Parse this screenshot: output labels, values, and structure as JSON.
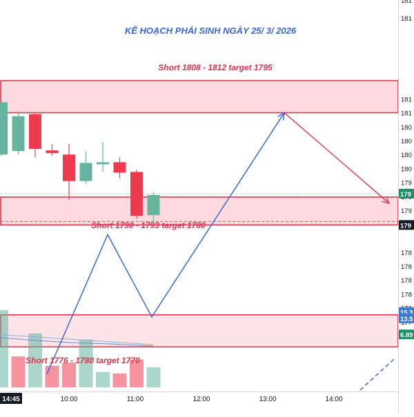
{
  "chart_data": {
    "type": "candlestick",
    "title": "KẾ HOẠCH PHÁI SINH NGÀY 25/ 3/ 2026",
    "colors": {
      "up": "#66b4a0",
      "down": "#ee3a4e",
      "zone_fill": "#fcd6dc",
      "zone_border": "#e0344a",
      "plan_line": "#3b67d6",
      "short_arrow": "#e04058",
      "ma_line": "#7fb6d8",
      "price_tag": "#1e8e69",
      "dark_tag": "#161a25",
      "blue_tag": "#3a7bd8"
    },
    "x_axis": {
      "labels": [
        "14:45",
        "10:00",
        "11:00",
        "12:00",
        "13:00",
        "14:00"
      ],
      "highlight": "14:45"
    },
    "y_axis": {
      "range": [
        1768,
        1822
      ],
      "tick_labels": [
        {
          "value": 1810,
          "text": "181"
        },
        {
          "value": 1808,
          "text": "181"
        },
        {
          "value": 1806,
          "text": "180"
        },
        {
          "value": 1804,
          "text": "180"
        },
        {
          "value": 1802,
          "text": "180"
        },
        {
          "value": 1800,
          "text": "180"
        },
        {
          "value": 1798,
          "text": "179"
        },
        {
          "value": 1796,
          "text": "179"
        },
        {
          "value": 1794,
          "text": "179"
        },
        {
          "value": 1788,
          "text": "178"
        },
        {
          "value": 1786,
          "text": "178"
        },
        {
          "value": 1784,
          "text": "178"
        },
        {
          "value": 1782,
          "text": "178"
        },
        {
          "value": 1780,
          "text": "178"
        },
        {
          "value": 1778,
          "text": "177"
        },
        {
          "value": 1776,
          "text": "177"
        }
      ],
      "partial_top": [
        "181",
        "181"
      ],
      "price_tags": [
        {
          "value": 1796.4,
          "text": "179",
          "style": "green"
        },
        {
          "value": 1791.9,
          "text": "179",
          "style": "dark"
        },
        {
          "value": 1779.4,
          "text": "15.3",
          "style": "blue"
        },
        {
          "value": 1778.5,
          "text": "13.5",
          "style": "blue"
        },
        {
          "value": 1776.2,
          "text": "6.89",
          "style": "green"
        }
      ]
    },
    "zones": [
      {
        "label": "Short 1808 - 1812 target 1795",
        "from": 1808,
        "to": 1812.6
      },
      {
        "label": "Short 1790 - 1793 target 1780",
        "from": 1791.9,
        "to": 1795.9
      },
      {
        "label": "Short 1776 - 1780 target 1770",
        "from": 1774.4,
        "to": 1779.0
      }
    ],
    "candles": [
      {
        "o": 1802.0,
        "h": 1809.5,
        "l": 1801.8,
        "c": 1809.5
      },
      {
        "o": 1802.5,
        "h": 1808.2,
        "l": 1802.0,
        "c": 1807.5
      },
      {
        "o": 1807.8,
        "h": 1808.0,
        "l": 1801.6,
        "c": 1802.8
      },
      {
        "o": 1802.6,
        "h": 1803.5,
        "l": 1801.8,
        "c": 1802.2
      },
      {
        "o": 1802.0,
        "h": 1803.5,
        "l": 1795.5,
        "c": 1798.2
      },
      {
        "o": 1798.2,
        "h": 1802.5,
        "l": 1797.8,
        "c": 1800.8
      },
      {
        "o": 1800.6,
        "h": 1803.8,
        "l": 1799.5,
        "c": 1800.9
      },
      {
        "o": 1800.9,
        "h": 1801.6,
        "l": 1798.6,
        "c": 1799.4
      },
      {
        "o": 1799.5,
        "h": 1799.8,
        "l": 1792.8,
        "c": 1793.2
      },
      {
        "o": 1793.3,
        "h": 1796.6,
        "l": 1792.1,
        "c": 1796.2
      }
    ],
    "volume": [
      {
        "v": 100,
        "up": true
      },
      {
        "v": 40,
        "up": false
      },
      {
        "v": 70,
        "up": true
      },
      {
        "v": 28,
        "up": false
      },
      {
        "v": 32,
        "up": false
      },
      {
        "v": 62,
        "up": true
      },
      {
        "v": 20,
        "up": true
      },
      {
        "v": 18,
        "up": false
      },
      {
        "v": 36,
        "up": false
      },
      {
        "v": 26,
        "up": true
      }
    ],
    "plan_path": [
      {
        "x": "09:40",
        "y": 1770.5
      },
      {
        "x": "10:35",
        "y": 1790.5
      },
      {
        "x": "11:15",
        "y": 1778.7
      },
      {
        "x": "13:15",
        "y": 1808.0
      },
      {
        "x": "14:50",
        "y": 1795.0
      }
    ]
  }
}
